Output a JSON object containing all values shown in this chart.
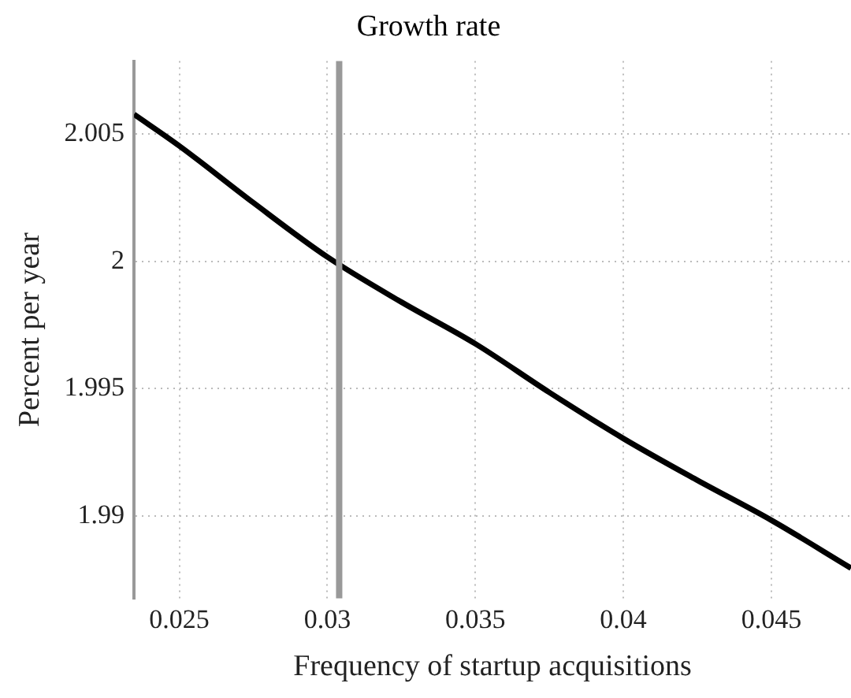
{
  "chart_data": {
    "type": "line",
    "title": "Growth rate",
    "xlabel": "Frequency of startup acquisitions",
    "ylabel": "Percent per year",
    "x": [
      0.02347,
      0.025,
      0.0275,
      0.03,
      0.0325,
      0.035,
      0.0375,
      0.04,
      0.0425,
      0.045,
      0.04769
    ],
    "series": [
      {
        "color": "#000000",
        "values": [
          2.00577,
          2.00453,
          2.0023,
          2.00017,
          1.9984,
          1.99676,
          1.99485,
          1.99304,
          1.9914,
          1.98983,
          1.98795
        ]
      }
    ],
    "xlim": [
      0.02347,
      0.04769
    ],
    "ylim": [
      1.98676,
      2.00786
    ],
    "xticks": [
      0.025,
      0.03,
      0.035,
      0.04,
      0.045
    ],
    "yticks": [
      1.99,
      1.995,
      2,
      2.005
    ],
    "ref_lines": [
      {
        "axis": "x",
        "value": 0.0304,
        "color": "#999999"
      }
    ],
    "grid": true,
    "legend": false,
    "marker": "none",
    "line_style": "solid"
  }
}
